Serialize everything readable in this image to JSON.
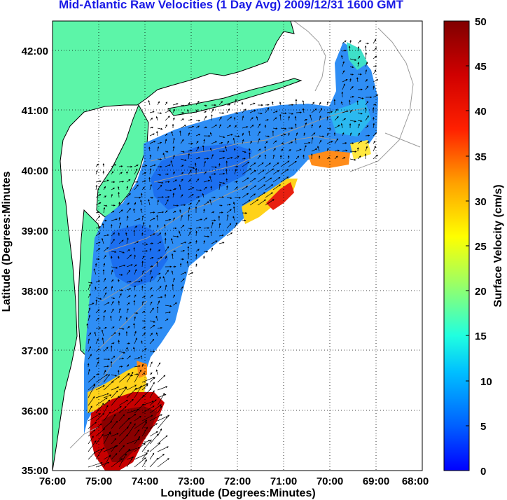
{
  "title": "Mid-Atlantic Raw Velocities (1 Day Avg) 2009/12/31 1600 GMT",
  "map": {
    "xlabel": "Longitude (Degrees:Minutes)",
    "ylabel": "Latitude (Degrees:Minutes",
    "x_ticks": [
      "76:00",
      "75:00",
      "74:00",
      "73:00",
      "72:00",
      "71:00",
      "70:00",
      "69:00",
      "68:00"
    ],
    "y_ticks": [
      "42:00",
      "41:00",
      "40:00",
      "39:00",
      "38:00",
      "37:00",
      "36:00",
      "35:00"
    ],
    "lon_range": [
      -76,
      -68
    ],
    "lat_range": [
      35,
      42.5
    ],
    "grid": "dotted",
    "land_color": "#5cf5a8",
    "coast_color": "#000000",
    "bathymetry_color": "#9a9a9a",
    "arrow_color": "#000000"
  },
  "colorbar": {
    "label": "Surface Velocity (cm/s)",
    "min": 0,
    "max": 50,
    "ticks": [
      "50",
      "45",
      "40",
      "35",
      "30",
      "25",
      "20",
      "15",
      "10",
      "5",
      "0"
    ],
    "colormap": "jet"
  }
}
